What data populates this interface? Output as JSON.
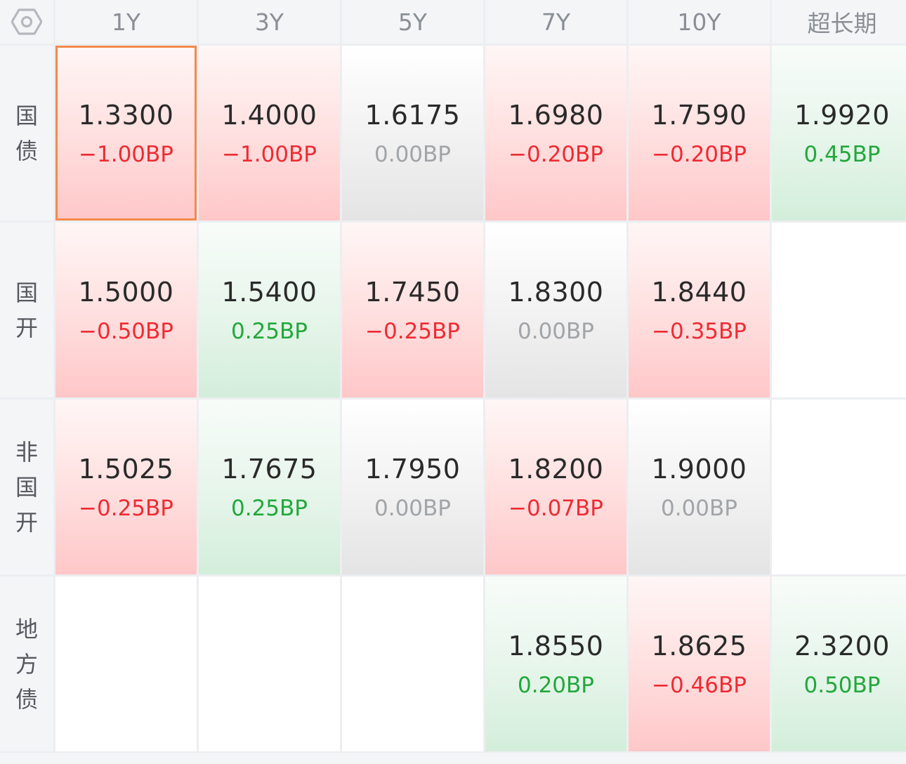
{
  "columns": [
    "1Y",
    "3Y",
    "5Y",
    "7Y",
    "10Y",
    "超长期"
  ],
  "rows": [
    {
      "label": "国债",
      "label_lines": [
        "国",
        "债"
      ],
      "cells": [
        {
          "value": "1.3300",
          "change": "−1.00BP",
          "trend": "down",
          "selected": true
        },
        {
          "value": "1.4000",
          "change": "−1.00BP",
          "trend": "down"
        },
        {
          "value": "1.6175",
          "change": "0.00BP",
          "trend": "flat"
        },
        {
          "value": "1.6980",
          "change": "−0.20BP",
          "trend": "down"
        },
        {
          "value": "1.7590",
          "change": "−0.20BP",
          "trend": "down"
        },
        {
          "value": "1.9920",
          "change": "0.45BP",
          "trend": "up"
        }
      ]
    },
    {
      "label": "国开",
      "label_lines": [
        "国",
        "开"
      ],
      "cells": [
        {
          "value": "1.5000",
          "change": "−0.50BP",
          "trend": "down"
        },
        {
          "value": "1.5400",
          "change": "0.25BP",
          "trend": "up"
        },
        {
          "value": "1.7450",
          "change": "−0.25BP",
          "trend": "down"
        },
        {
          "value": "1.8300",
          "change": "0.00BP",
          "trend": "flat"
        },
        {
          "value": "1.8440",
          "change": "−0.35BP",
          "trend": "down"
        },
        null
      ]
    },
    {
      "label": "非国开",
      "label_lines": [
        "非",
        "国",
        "开"
      ],
      "cells": [
        {
          "value": "1.5025",
          "change": "−0.25BP",
          "trend": "down"
        },
        {
          "value": "1.7675",
          "change": "0.25BP",
          "trend": "up"
        },
        {
          "value": "1.7950",
          "change": "0.00BP",
          "trend": "flat"
        },
        {
          "value": "1.8200",
          "change": "−0.07BP",
          "trend": "down"
        },
        {
          "value": "1.9000",
          "change": "0.00BP",
          "trend": "flat"
        },
        null
      ]
    },
    {
      "label": "地方债",
      "label_lines": [
        "地",
        "方",
        "债"
      ],
      "cells": [
        null,
        null,
        null,
        {
          "value": "1.8550",
          "change": "0.20BP",
          "trend": "up"
        },
        {
          "value": "1.8625",
          "change": "−0.46BP",
          "trend": "down"
        },
        {
          "value": "2.3200",
          "change": "0.50BP",
          "trend": "up"
        }
      ]
    }
  ],
  "icons": {
    "corner": "settings-hexagon-icon"
  },
  "colors": {
    "down_text": "#ee2b33",
    "up_text": "#21a83b",
    "flat_text": "#a1a4a8",
    "selected_border": "#f5894a"
  }
}
